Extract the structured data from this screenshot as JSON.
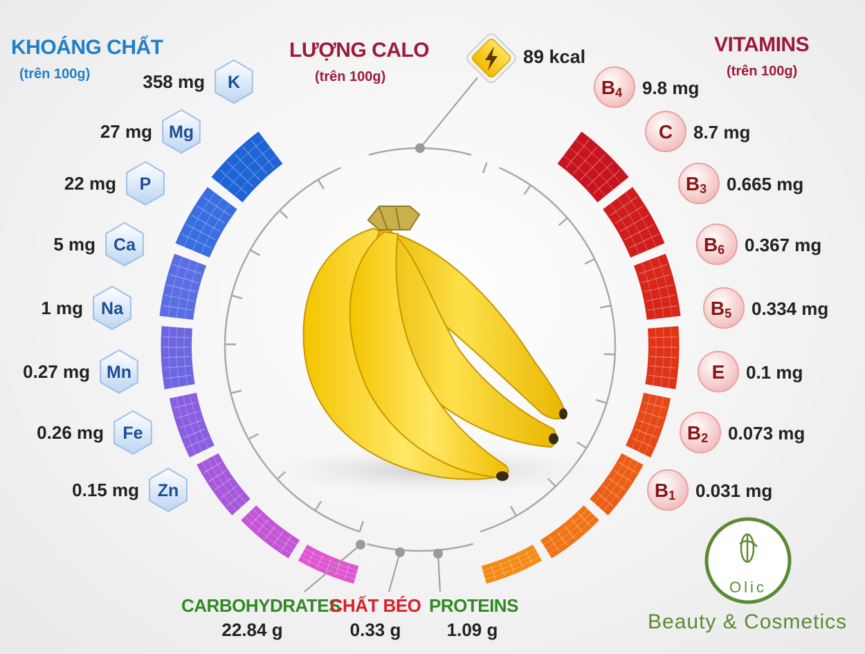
{
  "minerals": {
    "title": "KHOÁNG CHẤT",
    "subtitle": "(trên 100g)",
    "items": [
      {
        "symbol": "K",
        "value": "358",
        "unit": "mg"
      },
      {
        "symbol": "Mg",
        "value": "27",
        "unit": "mg"
      },
      {
        "symbol": "P",
        "value": "22",
        "unit": "mg"
      },
      {
        "symbol": "Ca",
        "value": "5",
        "unit": "mg"
      },
      {
        "symbol": "Na",
        "value": "1",
        "unit": "mg"
      },
      {
        "symbol": "Mn",
        "value": "0.27",
        "unit": "mg"
      },
      {
        "symbol": "Fe",
        "value": "0.26",
        "unit": "mg"
      },
      {
        "symbol": "Zn",
        "value": "0.15",
        "unit": "mg"
      }
    ]
  },
  "calories": {
    "title": "LƯỢNG CALO",
    "subtitle": "(trên 100g)",
    "value": "89 kcal",
    "icon": "lightning-bolt-icon"
  },
  "vitamins": {
    "title": "VITAMINS",
    "subtitle": "(trên 100g)",
    "items": [
      {
        "symbol": "B",
        "sub": "4",
        "value": "9.8",
        "unit": "mg"
      },
      {
        "symbol": "C",
        "sub": "",
        "value": "8.7",
        "unit": "mg"
      },
      {
        "symbol": "B",
        "sub": "3",
        "value": "0.665",
        "unit": "mg"
      },
      {
        "symbol": "B",
        "sub": "6",
        "value": "0.367",
        "unit": "mg"
      },
      {
        "symbol": "B",
        "sub": "5",
        "value": "0.334",
        "unit": "mg"
      },
      {
        "symbol": "E",
        "sub": "",
        "value": "0.1",
        "unit": "mg"
      },
      {
        "symbol": "B",
        "sub": "2",
        "value": "0.073",
        "unit": "mg"
      },
      {
        "symbol": "B",
        "sub": "1",
        "value": "0.031",
        "unit": "mg"
      }
    ]
  },
  "macros": [
    {
      "name": "CARBOHYDRATES",
      "value": "22.84 g",
      "color": "#2e8b22"
    },
    {
      "name": "CHẤT BÉO",
      "value": "0.33 g",
      "color": "#d91f2a"
    },
    {
      "name": "PROTEINS",
      "value": "1.09 g",
      "color": "#2e8b22"
    }
  ],
  "brand": {
    "logo_text": "Olic",
    "tagline": "Beauty & Cosmetics",
    "color": "#5a8a34"
  },
  "colors": {
    "minerals_title": "#1f7fc8",
    "vitamins_title": "#9b1b3b",
    "mineral_bars": [
      "#1f64d6",
      "#3a6ee0",
      "#5a6ee4",
      "#6d66e0",
      "#8a5ee0",
      "#a658dc",
      "#c354d6",
      "#e055d0"
    ],
    "vitamin_bars": [
      "#c8141e",
      "#d01c1c",
      "#d8261a",
      "#e03418",
      "#e64816",
      "#ec5e14",
      "#f07414",
      "#f48a16"
    ]
  }
}
